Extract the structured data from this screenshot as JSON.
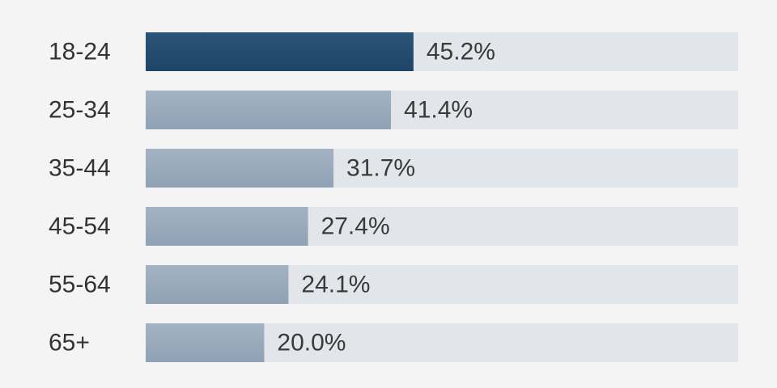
{
  "chart_data": {
    "type": "bar",
    "orientation": "horizontal",
    "categories": [
      "18-24",
      "25-34",
      "35-44",
      "45-54",
      "55-64",
      "65+"
    ],
    "values": [
      45.2,
      41.4,
      31.7,
      27.4,
      24.1,
      20.0
    ],
    "value_labels": [
      "45.2%",
      "41.4%",
      "31.7%",
      "27.4%",
      "24.1%",
      "20.0%"
    ],
    "xlim": [
      0,
      100
    ],
    "highlight_index": 0,
    "grid": false,
    "legend": "none"
  },
  "colors": {
    "background": "#f4f4f4",
    "track": "#e2e5e9",
    "highlight_top": "#2b5479",
    "highlight_bottom": "#1f4466",
    "bar_top": "#a4b3c3",
    "bar_bottom": "#8fa1b4",
    "label_text": "#333333",
    "value_text": "#3a3a3a"
  }
}
